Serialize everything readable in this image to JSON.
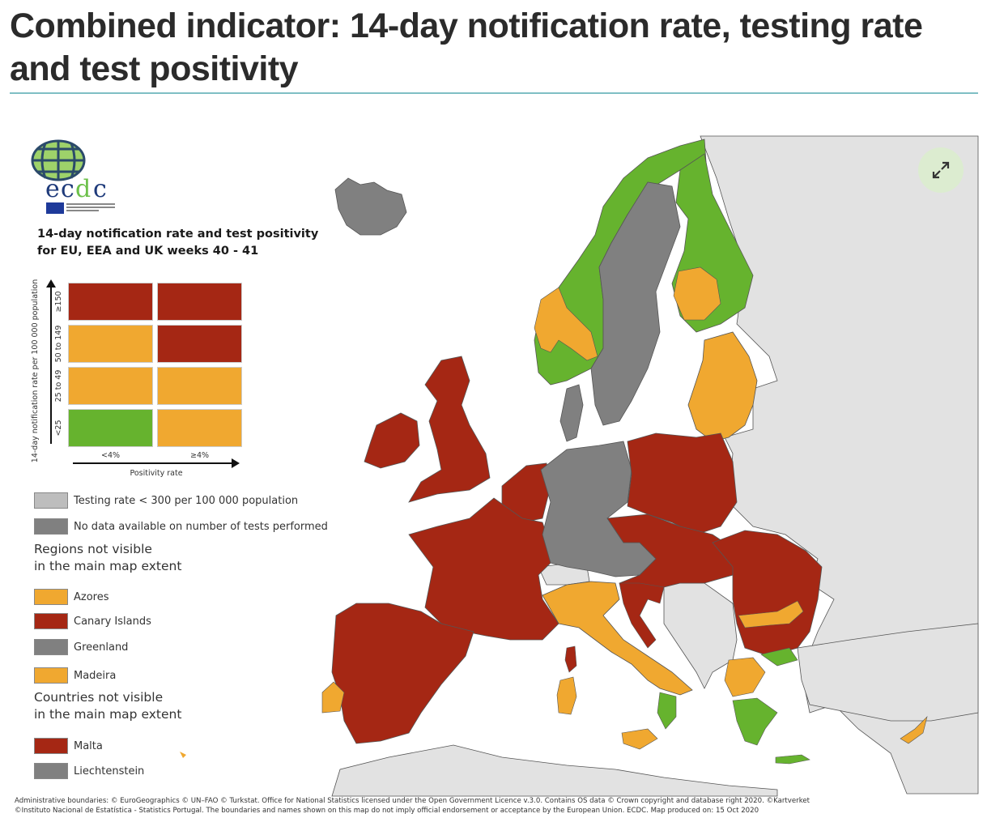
{
  "title": "Combined indicator: 14-day notification rate, testing rate and test positivity",
  "logo": {
    "text": "ecdc",
    "subtext": "EUROPEAN CENTRE FOR DISEASE PREVENTION AND CONTROL"
  },
  "legend": {
    "title_line1": "14-day notification rate and test positivity",
    "title_line2": "for EU, EEA and UK weeks 40 - 41",
    "y_axis_label": "14-day notification rate per 100 000 population",
    "y_ticks": [
      "≥150",
      "50 to 149",
      "25 to 49",
      "<25"
    ],
    "x_ticks": [
      "<4%",
      "≥4%"
    ],
    "x_axis_label": "Positivity rate",
    "matrix": [
      [
        "red",
        "red"
      ],
      [
        "orange",
        "red"
      ],
      [
        "orange",
        "orange"
      ],
      [
        "green",
        "orange"
      ]
    ],
    "other_items": [
      {
        "label": "Testing rate < 300 per 100 000 population",
        "color": "light-grey"
      },
      {
        "label": "No data available on number of tests performed",
        "color": "dark-grey"
      }
    ],
    "regions_heading_line1": "Regions not visible",
    "regions_heading_line2": "in the main map extent",
    "regions": [
      {
        "label": "Azores",
        "color": "orange"
      },
      {
        "label": "Canary Islands",
        "color": "red"
      },
      {
        "label": "Greenland",
        "color": "dark-grey"
      },
      {
        "label": "Madeira",
        "color": "orange"
      }
    ],
    "countries_heading_line1": "Countries not visible",
    "countries_heading_line2": "in the main map extent",
    "countries": [
      {
        "label": "Malta",
        "color": "red"
      },
      {
        "label": "Liechtenstein",
        "color": "dark-grey"
      }
    ]
  },
  "colors": {
    "red": "#a52714",
    "orange": "#f0a830",
    "green": "#66b32e",
    "light-grey": "#bdbdbd",
    "dark-grey": "#808080",
    "non-eu": "#e2e2e2",
    "rule": "#7fbfc4",
    "expand-bg": "#dcecd0"
  },
  "expand_button": {
    "icon": "expand-icon"
  },
  "footer": {
    "line1": "Administrative boundaries: © EuroGeographics © UN–FAO © Turkstat. Office for National Statistics licensed under the Open Government Licence v.3.0. Contains OS data © Crown copyright and database right 2020. ©Kartverket",
    "line2": "©Instituto Nacional de Estatística - Statistics Portugal. The boundaries and names shown on this map do not imply official endorsement or acceptance by the European Union. ECDC. Map produced on: 15 Oct 2020"
  }
}
